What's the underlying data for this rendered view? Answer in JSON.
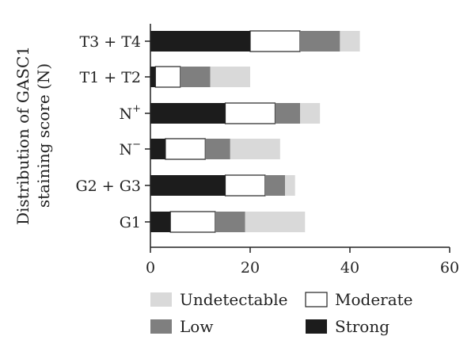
{
  "chart_data": {
    "type": "bar",
    "orientation": "horizontal",
    "stacked": true,
    "ylabel": "Distribution of GASC1 staining score (N)",
    "ylabel_lines": [
      "Distribution of GASC1",
      "staining score (N)"
    ],
    "categories": [
      "T3 + T4",
      "T1 + T2",
      "N",
      "N",
      "G2 + G3",
      "G1"
    ],
    "category_superscripts": [
      "",
      "",
      "+",
      "−",
      "",
      ""
    ],
    "xlim": [
      0,
      60
    ],
    "xticks": [
      "0",
      "20",
      "40",
      "60"
    ],
    "grid": false,
    "legend_position": "bottom",
    "series": [
      {
        "name": "Strong",
        "color": "#1c1c1c",
        "values": [
          20,
          1,
          15,
          3,
          15,
          4
        ]
      },
      {
        "name": "Moderate",
        "color": "#ffffff",
        "values": [
          10,
          5,
          10,
          8,
          8,
          9
        ]
      },
      {
        "name": "Low",
        "color": "#7f7f7f",
        "values": [
          8,
          6,
          5,
          5,
          4,
          6
        ]
      },
      {
        "name": "Undetectable",
        "color": "#d9d9d9",
        "values": [
          4,
          8,
          4,
          10,
          2,
          12
        ]
      }
    ],
    "legend": [
      {
        "series": "Undetectable"
      },
      {
        "series": "Moderate"
      },
      {
        "series": "Low"
      },
      {
        "series": "Strong"
      }
    ]
  }
}
